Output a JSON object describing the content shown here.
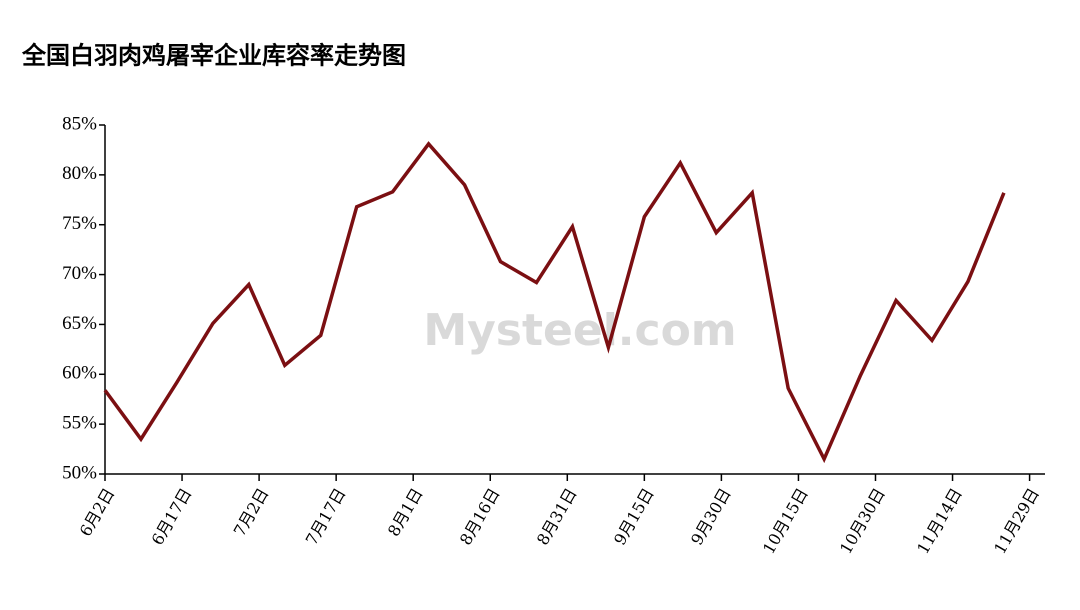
{
  "chart_data": {
    "type": "line",
    "title": "全国白羽肉鸡屠宰企业库容率走势图",
    "watermark": "Mysteel.com",
    "x": [
      "6月2日",
      "6月9日",
      "6月16日",
      "6月23日",
      "6月30日",
      "7月7日",
      "7月14日",
      "7月21日",
      "7月28日",
      "8月4日",
      "8月11日",
      "8月18日",
      "8月25日",
      "9月1日",
      "9月8日",
      "9月15日",
      "9月22日",
      "9月29日",
      "10月6日",
      "10月13日",
      "10月20日",
      "10月27日",
      "11月3日",
      "11月10日",
      "11月17日",
      "11月24日"
    ],
    "series": [
      {
        "name": "库容率",
        "color": "#7b0f12",
        "values": [
          58.4,
          53.5,
          59.2,
          65.1,
          69.0,
          60.9,
          63.9,
          76.8,
          78.3,
          83.1,
          79.0,
          71.3,
          69.2,
          74.8,
          62.7,
          75.8,
          81.2,
          74.2,
          78.2,
          58.6,
          51.5,
          59.8,
          67.4,
          63.4,
          69.3,
          78.2
        ]
      }
    ],
    "xlim": [
      "6月2日",
      "12月2日"
    ],
    "xticks": [
      "6月2日",
      "6月17日",
      "7月2日",
      "7月17日",
      "8月1日",
      "8月16日",
      "8月31日",
      "9月15日",
      "9月30日",
      "10月15日",
      "10月30日",
      "11月14日",
      "11月29日"
    ],
    "ylim": [
      50,
      85
    ],
    "yticks": [
      {
        "value": 50,
        "label": "50%"
      },
      {
        "value": 55,
        "label": "55%"
      },
      {
        "value": 60,
        "label": "60%"
      },
      {
        "value": 65,
        "label": "65%"
      },
      {
        "value": 70,
        "label": "70%"
      },
      {
        "value": 75,
        "label": "75%"
      },
      {
        "value": 80,
        "label": "80%"
      },
      {
        "value": 85,
        "label": "85%"
      }
    ],
    "grid": false
  }
}
